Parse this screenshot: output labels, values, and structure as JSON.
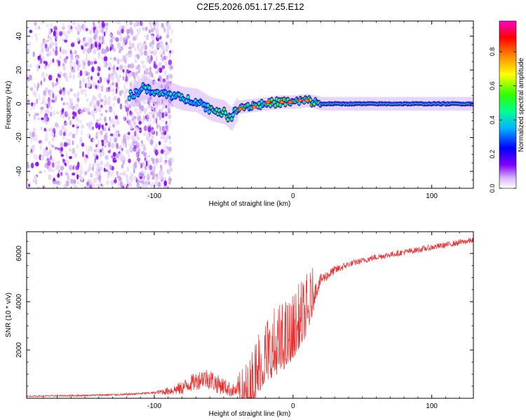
{
  "title": "C2E5.2026.051.17.25.E12",
  "chart_data": [
    {
      "type": "heatmap",
      "name": "spectrogram",
      "xlabel": "Height of straight line (km)",
      "ylabel": "Frequency (Hz)",
      "xlim": [
        -192,
        130
      ],
      "ylim": [
        -50,
        49
      ],
      "xticks": [
        -100,
        0,
        100
      ],
      "xtick_labels": [
        "-100",
        "0",
        "100"
      ],
      "yticks": [
        -40,
        -20,
        0,
        20,
        40
      ],
      "ytick_labels": [
        "-40",
        "-20",
        "0",
        "20",
        "40"
      ],
      "colorbar": {
        "label": "Normalized spectral amplitude",
        "range": [
          0,
          0.98
        ],
        "ticks": [
          0,
          0.2,
          0.4,
          0.6,
          0.8
        ],
        "tick_labels": [
          "0.0",
          "0.2",
          "0.4",
          "0.6",
          "0.8"
        ],
        "colormap": [
          "#ffffff",
          "#c8a0f0",
          "#7a00ff",
          "#0000ff",
          "#00c8ff",
          "#00ff80",
          "#40ff00",
          "#ffff00",
          "#ff8000",
          "#ff0000",
          "#ff00c8"
        ]
      },
      "noise_region_x": [
        -192,
        -95
      ],
      "signal_track": [
        {
          "x": -115,
          "y": 5
        },
        {
          "x": -108,
          "y": 10
        },
        {
          "x": -100,
          "y": 6
        },
        {
          "x": -90,
          "y": 6
        },
        {
          "x": -80,
          "y": 3
        },
        {
          "x": -70,
          "y": 2
        },
        {
          "x": -60,
          "y": -3
        },
        {
          "x": -50,
          "y": -5
        },
        {
          "x": -45,
          "y": -9
        },
        {
          "x": -40,
          "y": -2
        },
        {
          "x": -30,
          "y": -1
        },
        {
          "x": -20,
          "y": 0
        },
        {
          "x": -10,
          "y": 1
        },
        {
          "x": 0,
          "y": 1
        },
        {
          "x": 10,
          "y": 2
        },
        {
          "x": 20,
          "y": 0
        },
        {
          "x": 60,
          "y": 0
        },
        {
          "x": 100,
          "y": 0
        },
        {
          "x": 130,
          "y": 0
        }
      ],
      "hot_spots": [
        {
          "x": -38,
          "y": -3
        },
        {
          "x": -28,
          "y": -2
        },
        {
          "x": -18,
          "y": 1
        },
        {
          "x": -8,
          "y": 1
        },
        {
          "x": -2,
          "y": 1
        },
        {
          "x": 5,
          "y": 2
        },
        {
          "x": 10,
          "y": 2
        }
      ]
    },
    {
      "type": "line",
      "name": "snr",
      "xlabel": "Height of straight line (km)",
      "ylabel": "SNR (10 * v/v)",
      "xlim": [
        -192,
        130
      ],
      "ylim": [
        0,
        6900
      ],
      "xticks": [
        -100,
        0,
        100
      ],
      "xtick_labels": [
        "-100",
        "0",
        "100"
      ],
      "yticks": [
        2000,
        4000,
        6000
      ],
      "ytick_labels": [
        "2000",
        "4000",
        "6000"
      ],
      "line_color": "#e83030",
      "series": [
        {
          "name": "SNR",
          "x": [
            -192,
            -150,
            -120,
            -100,
            -90,
            -80,
            -75,
            -70,
            -65,
            -60,
            -55,
            -50,
            -45,
            -40,
            -35,
            -30,
            -25,
            -20,
            -15,
            -10,
            -5,
            0,
            5,
            10,
            15,
            20,
            25,
            30,
            40,
            50,
            60,
            70,
            80,
            90,
            100,
            110,
            120,
            130
          ],
          "y": [
            80,
            120,
            160,
            230,
            300,
            420,
            600,
            700,
            850,
            800,
            600,
            500,
            350,
            300,
            200,
            350,
            1200,
            1700,
            1900,
            2100,
            2300,
            2600,
            3100,
            3500,
            4300,
            4900,
            5100,
            5300,
            5550,
            5700,
            5850,
            5950,
            6050,
            6150,
            6250,
            6350,
            6450,
            6550
          ]
        }
      ],
      "noise_amplitude": [
        {
          "x": -192,
          "a": 60
        },
        {
          "x": -100,
          "a": 100
        },
        {
          "x": -75,
          "a": 700
        },
        {
          "x": -60,
          "a": 900
        },
        {
          "x": -40,
          "a": 500
        },
        {
          "x": -30,
          "a": 1400
        },
        {
          "x": -10,
          "a": 1500
        },
        {
          "x": 10,
          "a": 1300
        },
        {
          "x": 20,
          "a": 500
        },
        {
          "x": 40,
          "a": 260
        },
        {
          "x": 130,
          "a": 240
        }
      ]
    }
  ]
}
